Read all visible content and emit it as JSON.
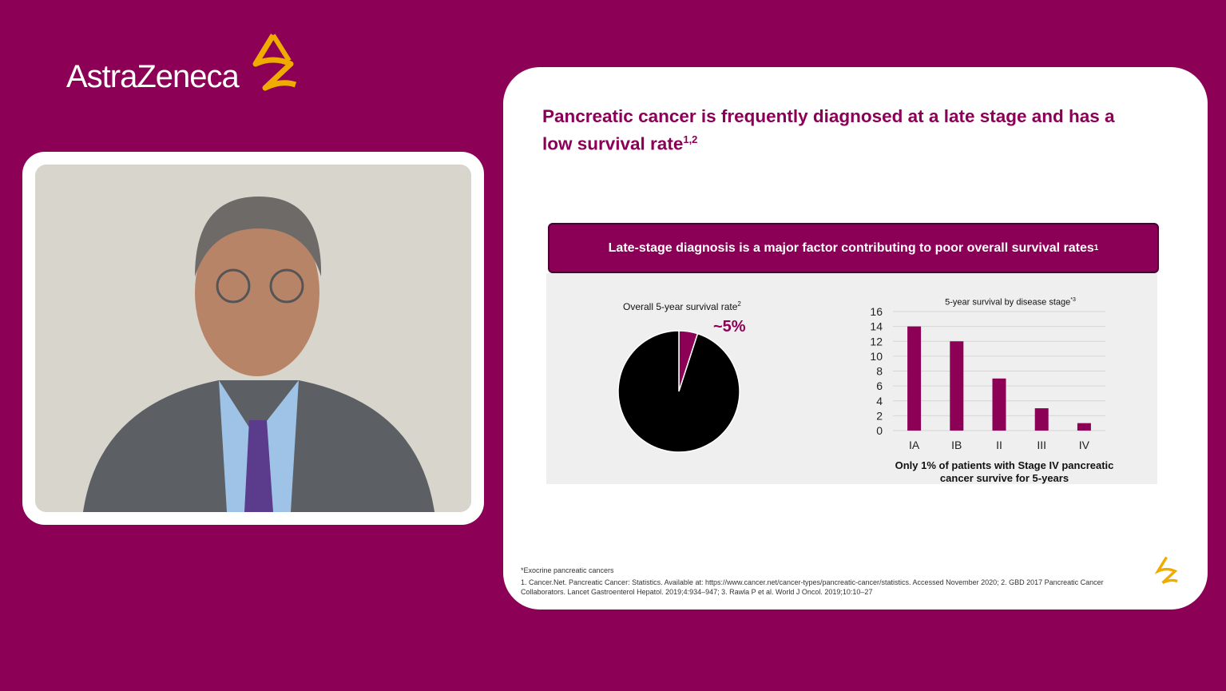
{
  "brand": {
    "name": "AstraZeneca",
    "accent": "#8c0056",
    "logo_color": "#f0ab00"
  },
  "slide": {
    "title": "Pancreatic cancer is frequently diagnosed at a late stage and has a low survival rate",
    "title_refs": "1,2",
    "banner": "Late-stage diagnosis is a major factor contributing to poor overall survival rates",
    "banner_ref": "1",
    "caption_line1": "Only 1% of patients with Stage IV pancreatic",
    "caption_line2": "cancer survive for 5-years",
    "footnote_star": "*Exocrine pancreatic cancers",
    "references": "1. Cancer.Net. Pancreatic Cancer: Statistics. Available at: https://www.cancer.net/cancer-types/pancreatic-cancer/statistics. Accessed November 2020; 2. GBD 2017 Pancreatic Cancer Collaborators. Lancet Gastroenterol Hepatol. 2019;4:934–947; 3. Rawla P et al. World J Oncol. 2019;10:10–27"
  },
  "chart_data": [
    {
      "type": "pie",
      "title": "Overall 5-year survival rate",
      "title_ref": "2",
      "label": "~5%",
      "values": [
        5,
        95
      ],
      "colors": [
        "#8c0056",
        "#000000"
      ]
    },
    {
      "type": "bar",
      "title": "5-year survival by disease stage",
      "title_ref": "*3",
      "categories": [
        "IA",
        "IB",
        "II",
        "III",
        "IV"
      ],
      "values": [
        14,
        12,
        7,
        3,
        1
      ],
      "ylim": [
        0,
        16
      ],
      "yticks": [
        "0",
        "2",
        "4",
        "6",
        "8",
        "10",
        "12",
        "14",
        "16"
      ],
      "grid": true,
      "color": "#8c0056"
    }
  ]
}
